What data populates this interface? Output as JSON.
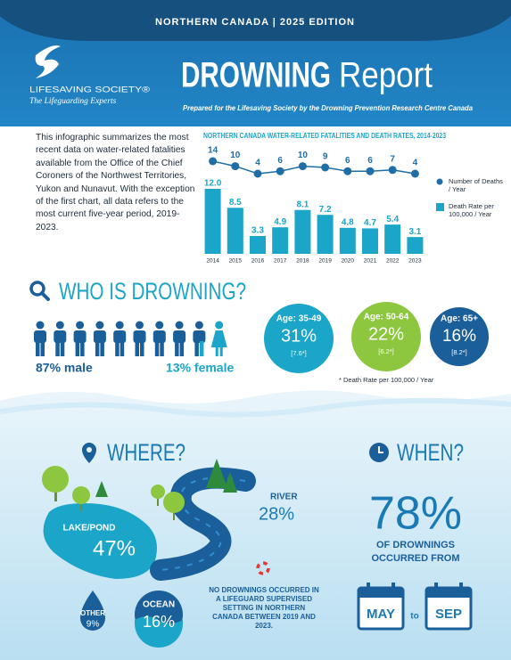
{
  "header": {
    "edition": "NORTHERN CANADA | 2025 EDITION",
    "org": "LIFESAVING SOCIETY®",
    "tagline": "The Lifeguarding Experts",
    "title": "DROWNING",
    "title_suffix": "Report",
    "subtitle": "Prepared for the Lifesaving Society by the Drowning Prevention Research Centre Canada"
  },
  "intro": "This infographic summarizes the most recent data on water-related fatalities available from the Office of the Chief Coroners of the Northwest Territories, Yukon and Nunavut. With the exception of the first chart, all data refers to the most current five-year period, 2019-2023.",
  "chart_data": {
    "type": "combo",
    "title": "NORTHERN CANADA WATER-RELATED FATALITIES AND DEATH RATES, 2014-2023",
    "categories": [
      "2014",
      "2015",
      "2016",
      "2017",
      "2018",
      "2019",
      "2020",
      "2021",
      "2022",
      "2023"
    ],
    "series": [
      {
        "name": "Number of Deaths / Year",
        "type": "line",
        "color": "#1f6ea6",
        "values": [
          14,
          10,
          4,
          6,
          10,
          9,
          6,
          6,
          7,
          4
        ]
      },
      {
        "name": "Death Rate per 100,000 / Year",
        "type": "bar",
        "color": "#1aa5c9",
        "values": [
          12.0,
          8.5,
          3.3,
          4.9,
          8.1,
          7.2,
          4.8,
          4.7,
          5.4,
          3.1
        ],
        "value_labels": [
          "12.0",
          "8.5",
          "3.3",
          "4.9",
          "8.1",
          "7.2",
          "4.8",
          "4.7",
          "5.4",
          "3.1"
        ]
      }
    ]
  },
  "who": {
    "title": "WHO IS DROWNING?",
    "male": "87% male",
    "female": "13% female",
    "age_groups": [
      {
        "label": "Age: 35-49",
        "share": "31%",
        "rate": "[7.6*]"
      },
      {
        "label": "Age: 50-64",
        "share": "22%",
        "rate": "[6.2*]"
      },
      {
        "label": "Age: 65+",
        "share": "16%",
        "rate": "[8.2*]"
      }
    ],
    "note": "* Death Rate per 100,000 / Year"
  },
  "where": {
    "title": "WHERE?",
    "locations": [
      {
        "label": "RIVER",
        "share": "28%"
      },
      {
        "label": "LAKE/POND",
        "share": "47%"
      },
      {
        "label": "OTHER",
        "share": "9%"
      },
      {
        "label": "OCEAN",
        "share": "16%"
      }
    ],
    "note": "NO DROWNINGS OCCURRED IN A LIFEGUARD SUPERVISED SETTING IN NORTHERN CANADA BETWEEN 2019 AND 2023."
  },
  "when": {
    "title": "WHEN?",
    "share": "78%",
    "caption": "OF DROWNINGS OCCURRED FROM",
    "start": "MAY",
    "joiner": "to",
    "end": "SEP"
  }
}
